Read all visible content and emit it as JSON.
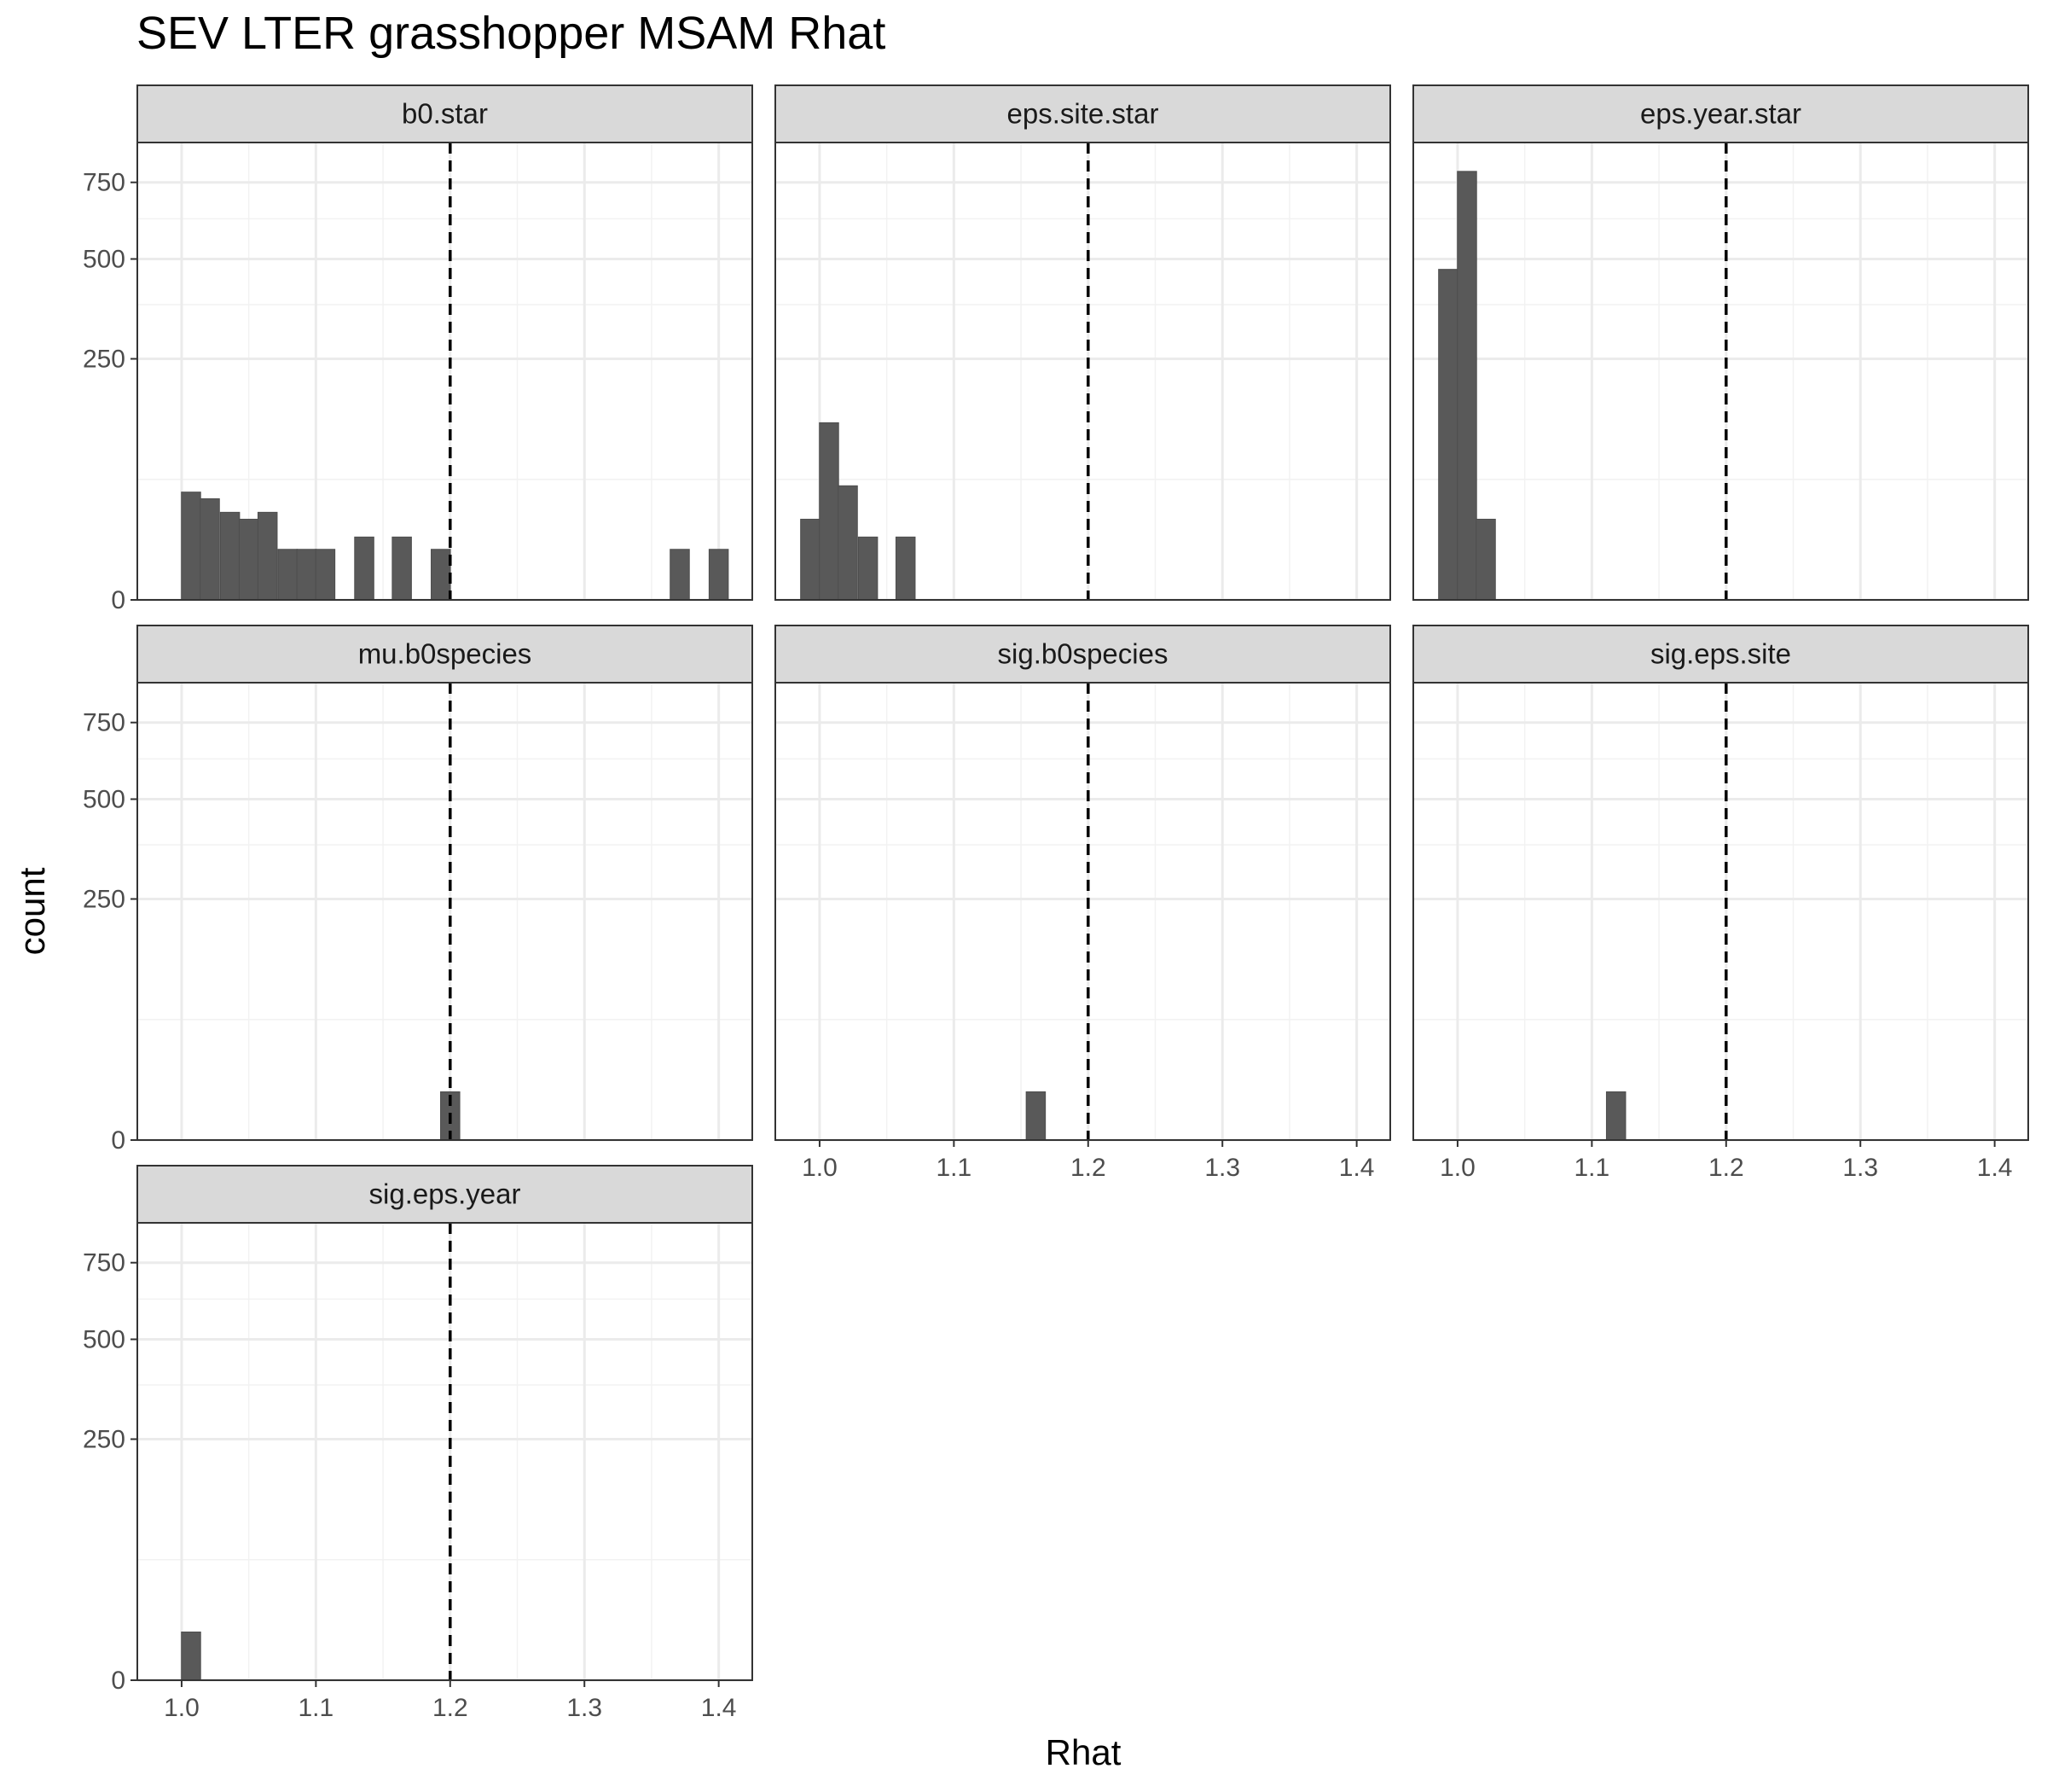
{
  "chart_data": {
    "type": "bar",
    "title": "SEV LTER grasshopper MSAM Rhat",
    "xlabel": "Rhat",
    "ylabel": "count",
    "x_ticks": [
      "1.0",
      "1.1",
      "1.2",
      "1.3",
      "1.4"
    ],
    "x_tick_values": [
      1.0,
      1.1,
      1.2,
      1.3,
      1.4
    ],
    "y_ticks": [
      "0",
      "250",
      "500",
      "750"
    ],
    "y_tick_values": [
      0,
      250,
      500,
      750
    ],
    "y_scale": "sqrt",
    "y_minor_values": [
      62.5,
      375,
      625
    ],
    "xlim": [
      0.967,
      1.425
    ],
    "ylim": [
      0,
      900
    ],
    "bin_width": 0.0143,
    "reference_line": 1.2,
    "bar_color": "#595959",
    "grid": true,
    "facets": [
      {
        "name": "b0.star",
        "bins": [
          {
            "x": 1.007,
            "count": 50
          },
          {
            "x": 1.021,
            "count": 44
          },
          {
            "x": 1.036,
            "count": 33
          },
          {
            "x": 1.05,
            "count": 28
          },
          {
            "x": 1.064,
            "count": 33
          },
          {
            "x": 1.079,
            "count": 11
          },
          {
            "x": 1.093,
            "count": 11
          },
          {
            "x": 1.107,
            "count": 11
          },
          {
            "x": 1.136,
            "count": 17
          },
          {
            "x": 1.164,
            "count": 17
          },
          {
            "x": 1.193,
            "count": 11
          },
          {
            "x": 1.371,
            "count": 11
          },
          {
            "x": 1.4,
            "count": 11
          }
        ]
      },
      {
        "name": "eps.site.star",
        "bins": [
          {
            "x": 0.993,
            "count": 28
          },
          {
            "x": 1.007,
            "count": 135
          },
          {
            "x": 1.021,
            "count": 56
          },
          {
            "x": 1.036,
            "count": 17
          },
          {
            "x": 1.064,
            "count": 17
          }
        ]
      },
      {
        "name": "eps.year.star",
        "bins": [
          {
            "x": 0.993,
            "count": 470
          },
          {
            "x": 1.007,
            "count": 790
          },
          {
            "x": 1.021,
            "count": 28
          }
        ]
      },
      {
        "name": "mu.b0species",
        "bins": [
          {
            "x": 1.2,
            "count": 10
          }
        ]
      },
      {
        "name": "sig.b0species",
        "bins": [
          {
            "x": 1.161,
            "count": 10
          }
        ]
      },
      {
        "name": "sig.eps.site",
        "bins": [
          {
            "x": 1.118,
            "count": 10
          }
        ]
      },
      {
        "name": "sig.eps.year",
        "bins": [
          {
            "x": 1.007,
            "count": 10
          }
        ]
      }
    ]
  }
}
